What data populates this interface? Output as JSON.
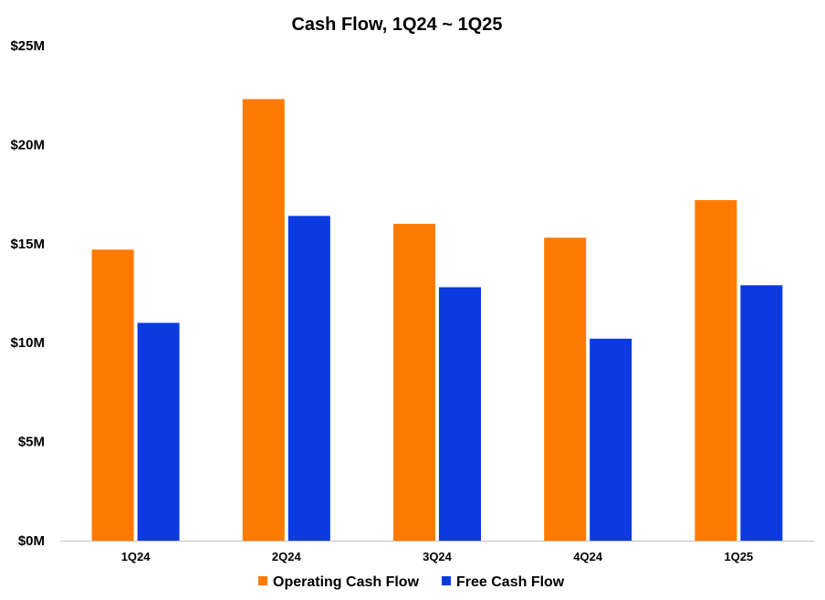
{
  "chart_data": {
    "type": "bar",
    "title": "Cash Flow, 1Q24 ~ 1Q25",
    "xlabel": "",
    "ylabel": "",
    "categories": [
      "1Q24",
      "2Q24",
      "3Q24",
      "4Q24",
      "1Q25"
    ],
    "series": [
      {
        "name": "Operating Cash Flow",
        "color": "#ff7a00",
        "values": [
          14.7,
          22.3,
          16.0,
          15.3,
          17.2
        ]
      },
      {
        "name": "Free Cash Flow",
        "color": "#0a3ae0",
        "values": [
          11.0,
          16.4,
          12.8,
          10.2,
          12.9
        ]
      }
    ],
    "ylim": [
      0,
      25
    ],
    "yticks": [
      0,
      5,
      10,
      15,
      20,
      25
    ],
    "ytick_labels": [
      "$0M",
      "$5M",
      "$10M",
      "$15M",
      "$20M",
      "$25M"
    ],
    "grid": false,
    "legend_position": "bottom"
  }
}
